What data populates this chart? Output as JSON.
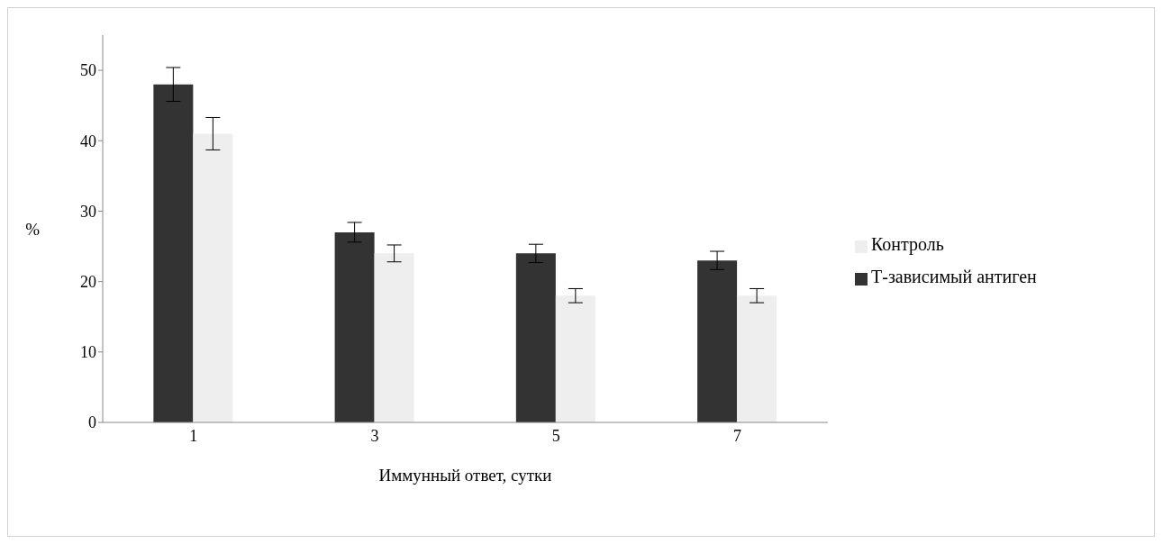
{
  "chart_data": {
    "type": "bar",
    "xlabel": "Иммунный ответ, сутки",
    "ylabel": "%",
    "categories": [
      "1",
      "3",
      "5",
      "7"
    ],
    "series": [
      {
        "name": "Т-зависимый антиген",
        "color": "#333333",
        "values": [
          48,
          27,
          24,
          23
        ],
        "errors": [
          2.4,
          1.4,
          1.3,
          1.3
        ]
      },
      {
        "name": "Контроль",
        "color": "#eeeeee",
        "values": [
          41,
          24,
          18,
          18
        ],
        "errors": [
          2.3,
          1.2,
          1,
          1
        ]
      }
    ],
    "ylim": [
      0,
      55
    ],
    "yticks": [
      0,
      10,
      20,
      30,
      40,
      50
    ],
    "grid": false,
    "legend": "right"
  }
}
